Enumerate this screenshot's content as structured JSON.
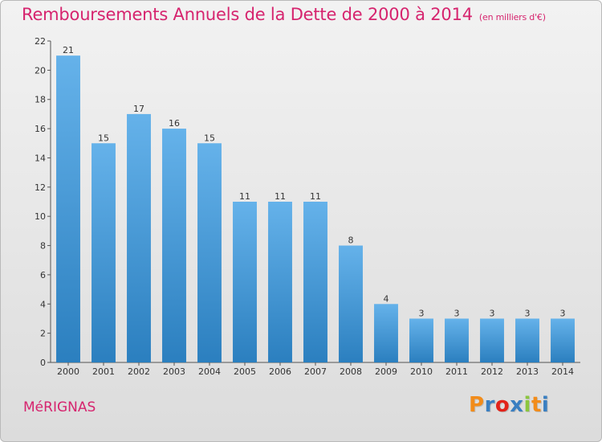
{
  "header": {
    "title": "Remboursements Annuels de la Dette de 2000 à 2014",
    "subtitle": "(en milliers d'€)"
  },
  "footer": {
    "commune": "MéRIGNAS",
    "logo_text": "Proxiti",
    "logo_colors": [
      "#f28c1a",
      "#3a7fc1",
      "#e2231a",
      "#3a7fc1",
      "#8cc63f",
      "#f28c1a",
      "#3a7fc1"
    ]
  },
  "chart_data": {
    "type": "bar",
    "categories": [
      "2000",
      "2001",
      "2002",
      "2003",
      "2004",
      "2005",
      "2006",
      "2007",
      "2008",
      "2009",
      "2010",
      "2011",
      "2012",
      "2013",
      "2014"
    ],
    "values": [
      21,
      15,
      17,
      16,
      15,
      11,
      11,
      11,
      8,
      4,
      3,
      3,
      3,
      3,
      3
    ],
    "ylim": [
      0,
      22
    ],
    "yticks": [
      0,
      2,
      4,
      6,
      8,
      10,
      12,
      14,
      16,
      18,
      20,
      22
    ],
    "grid": false,
    "xlabel": "",
    "ylabel": "",
    "colors": {
      "bar_top": "#65b2ea",
      "bar_bottom": "#2b7fbf",
      "title": "#d6246e"
    }
  }
}
